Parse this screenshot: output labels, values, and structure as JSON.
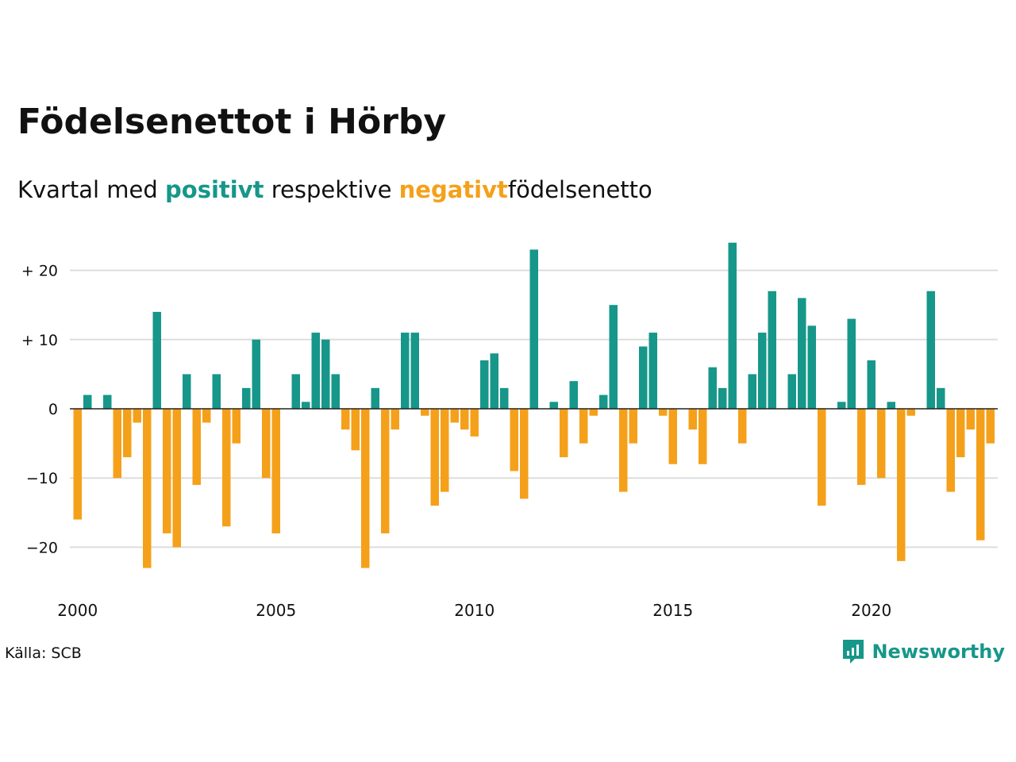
{
  "title": "Födelsenettot i Hörby",
  "subtitle": {
    "part1": "Kvartal med",
    "positive": "positivt",
    "part2": "respektive",
    "negative": "negativt",
    "part3": "födelsenetto"
  },
  "source": "Källa: SCB",
  "brand": "Newsworthy",
  "colors": {
    "positive": "#16978a",
    "negative": "#f5a01a",
    "grid": "#dddddd",
    "zero": "#222222"
  },
  "chart_data": {
    "type": "bar",
    "x_start": "2000 Q1",
    "x_labels": [
      "2000",
      "2005",
      "2010",
      "2015",
      "2020"
    ],
    "y_ticks": [
      20,
      10,
      0,
      -10,
      -20
    ],
    "y_tick_labels": [
      "+ 20",
      "+ 10",
      "0",
      "−10",
      "−20"
    ],
    "ylim": [
      -26,
      26
    ],
    "grid": true,
    "values": [
      -16,
      2,
      0,
      2,
      -10,
      -7,
      -2,
      -23,
      14,
      -18,
      -20,
      5,
      -11,
      -2,
      5,
      -17,
      -5,
      3,
      10,
      -10,
      -18,
      0,
      5,
      1,
      11,
      10,
      5,
      -3,
      -6,
      -23,
      3,
      -18,
      -3,
      11,
      11,
      -1,
      -14,
      -12,
      -2,
      -3,
      -4,
      7,
      8,
      3,
      -9,
      -13,
      23,
      0,
      1,
      -7,
      4,
      -5,
      -1,
      2,
      15,
      -12,
      -5,
      9,
      11,
      -1,
      -8,
      0,
      -3,
      -8,
      6,
      3,
      24,
      -5,
      5,
      11,
      17,
      0,
      5,
      16,
      12,
      -14,
      0,
      1,
      13,
      -11,
      7,
      -10,
      1,
      -22,
      -1,
      0,
      17,
      3,
      -12,
      -7,
      -3,
      -19,
      -5
    ]
  }
}
